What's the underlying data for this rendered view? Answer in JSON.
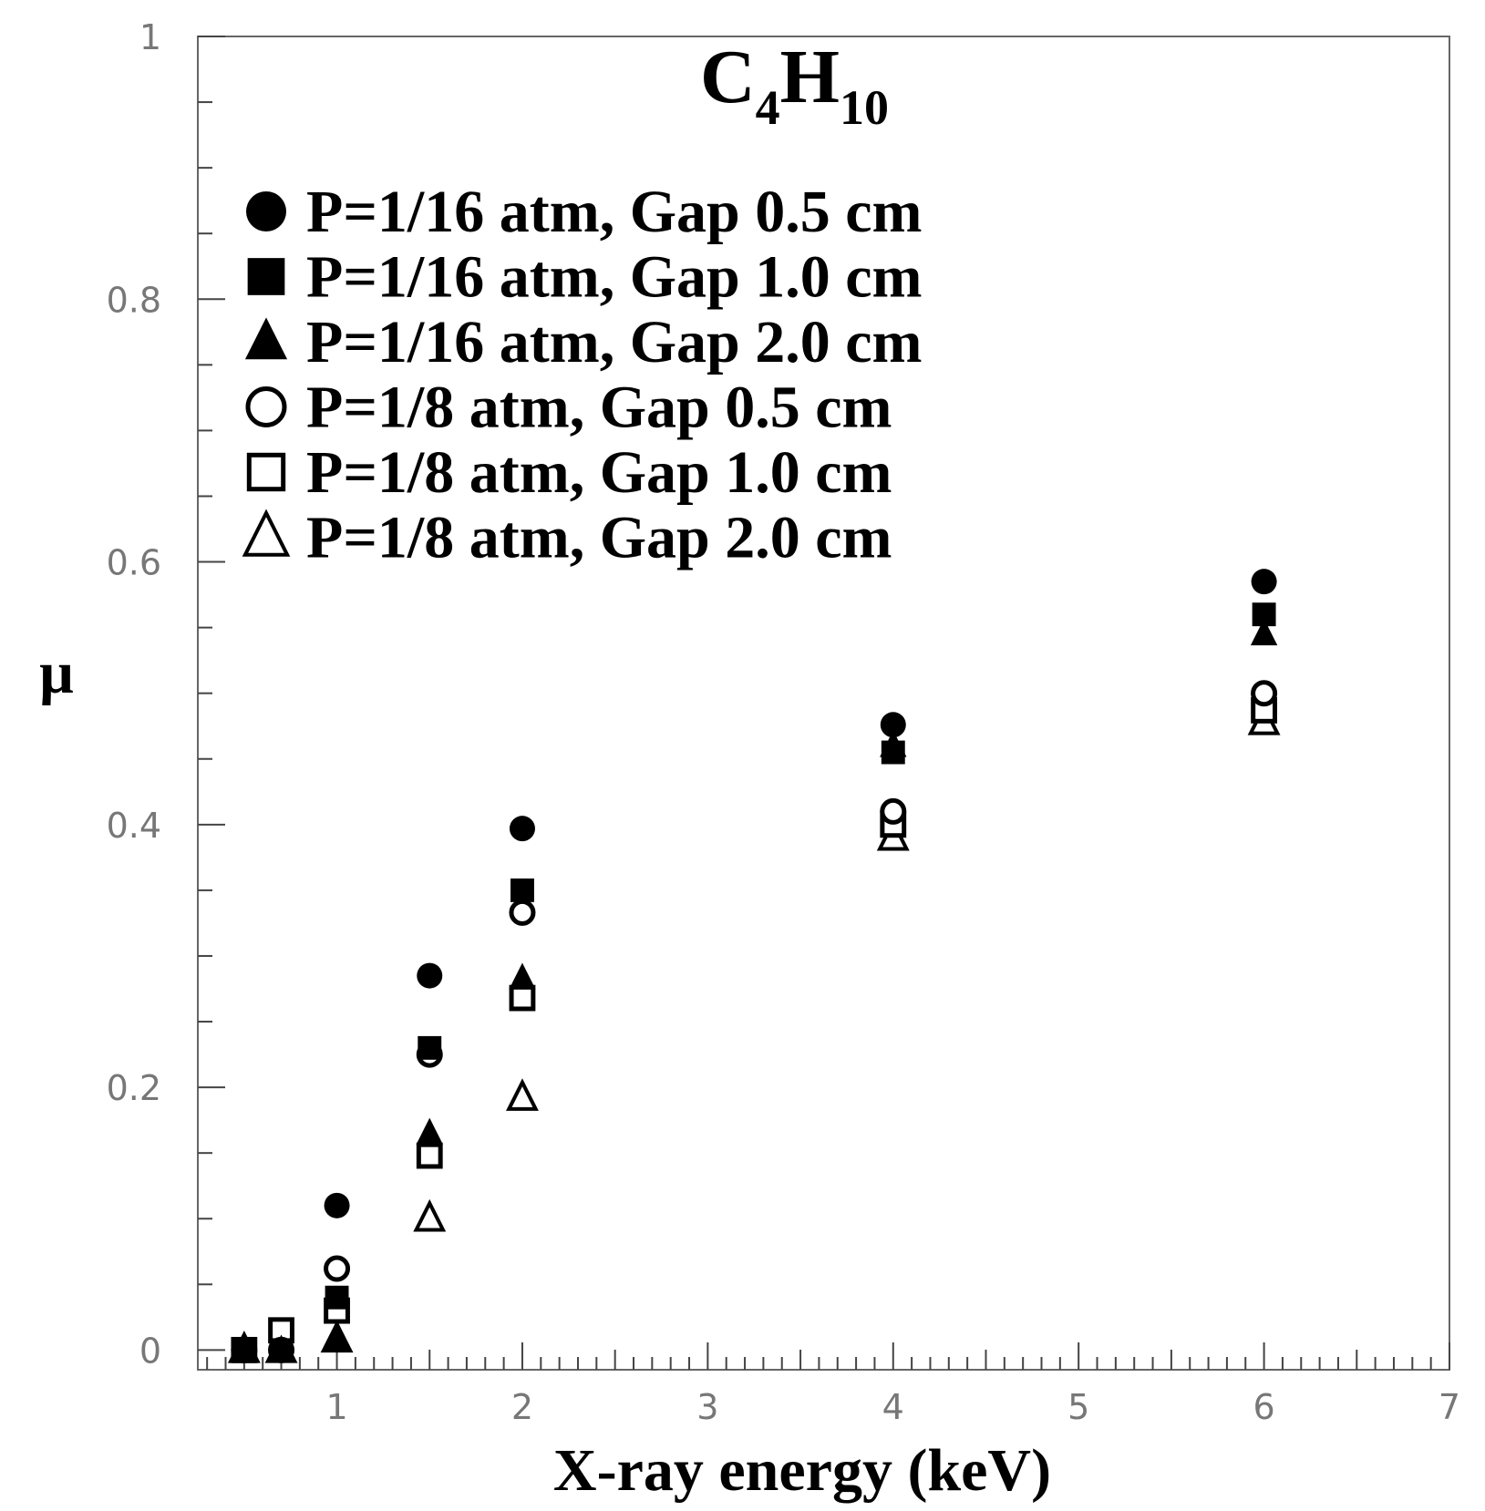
{
  "chart_data": {
    "type": "scatter",
    "title_main": "C",
    "title_sub1": "4",
    "title_mid": "H",
    "title_sub2": "10",
    "xlabel": "X-ray energy (keV)",
    "ylabel": "μ",
    "xlim": [
      0.25,
      7
    ],
    "ylim": [
      -0.015,
      1
    ],
    "xticks": [
      1,
      2,
      3,
      4,
      5,
      6,
      7
    ],
    "xtick_labels": [
      "1",
      "2",
      "3",
      "4",
      "5",
      "6",
      "7"
    ],
    "xminor_step": 0.1,
    "yticks": [
      0,
      0.2,
      0.4,
      0.6,
      0.8,
      1
    ],
    "ytick_labels": [
      "0",
      "0.2",
      "0.4",
      "0.6",
      "0.8",
      "1"
    ],
    "yminor_step": 0.05,
    "legend_position": "top-left",
    "series": [
      {
        "name": "P=1/16 atm, Gap 0.5 cm",
        "marker": "circle",
        "filled": true,
        "x": [
          0.5,
          0.7,
          1.0,
          1.5,
          2.0,
          4.0,
          6.0
        ],
        "y": [
          0.0,
          0.0,
          0.11,
          0.285,
          0.397,
          0.476,
          0.585
        ]
      },
      {
        "name": "P=1/16 atm, Gap 1.0 cm",
        "marker": "square",
        "filled": true,
        "x": [
          0.5,
          0.7,
          1.0,
          1.5,
          2.0,
          4.0,
          6.0
        ],
        "y": [
          0.0,
          0.0,
          0.04,
          0.23,
          0.35,
          0.455,
          0.56
        ]
      },
      {
        "name": "P=1/16 atm, Gap 2.0 cm",
        "marker": "triangle",
        "filled": true,
        "x": [
          0.5,
          0.7,
          1.0,
          1.5,
          2.0,
          4.0,
          6.0
        ],
        "y": [
          0.0,
          0.0,
          0.008,
          0.165,
          0.283,
          0.46,
          0.545
        ]
      },
      {
        "name": "P=1/8 atm, Gap 0.5 cm",
        "marker": "circle",
        "filled": false,
        "x": [
          0.5,
          0.7,
          1.0,
          1.5,
          2.0,
          4.0,
          6.0
        ],
        "y": [
          0.0,
          0.0,
          0.062,
          0.225,
          0.333,
          0.41,
          0.5
        ]
      },
      {
        "name": "P=1/8 atm, Gap 1.0 cm",
        "marker": "square",
        "filled": false,
        "x": [
          0.5,
          0.7,
          1.0,
          1.5,
          2.0,
          4.0,
          6.0
        ],
        "y": [
          0.0,
          0.015,
          0.03,
          0.148,
          0.268,
          0.4,
          0.487
        ]
      },
      {
        "name": "P=1/8 atm, Gap 2.0 cm",
        "marker": "triangle",
        "filled": false,
        "x": [
          0.5,
          0.7,
          1.0,
          1.5,
          2.0,
          4.0,
          6.0
        ],
        "y": [
          0.0,
          0.0,
          0.008,
          0.1,
          0.192,
          0.39,
          0.478
        ]
      }
    ]
  }
}
